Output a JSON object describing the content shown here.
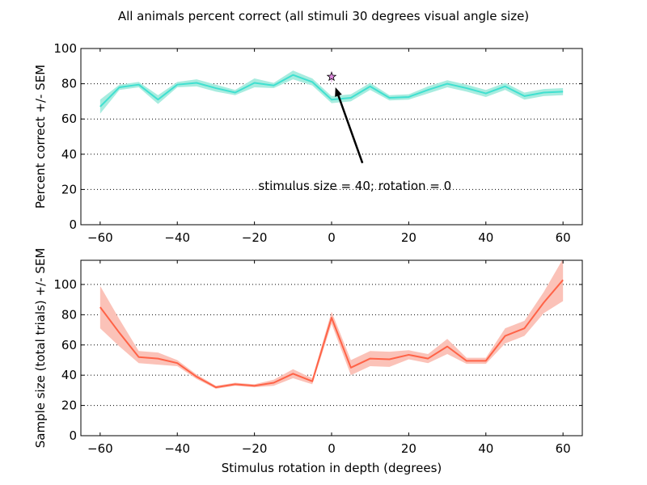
{
  "figure": {
    "title": "All animals percent correct (all stimuli 30 degrees visual angle size)"
  },
  "chart_data": [
    {
      "type": "line",
      "ylabel": "Percent correct +/- SEM",
      "xlabel": "",
      "xlim": [
        -65,
        65
      ],
      "ylim": [
        0,
        100
      ],
      "xticks": [
        -60,
        -40,
        -20,
        0,
        20,
        40,
        60
      ],
      "yticks": [
        0,
        20,
        40,
        60,
        80,
        100
      ],
      "y_grid": "dotted",
      "color": "#40e0d0",
      "band_color": "#a8ecdf",
      "series": [
        {
          "x": [
            -60,
            -55,
            -50,
            -45,
            -40,
            -35,
            -30,
            -25,
            -20,
            -15,
            -10,
            -5,
            0,
            5,
            10,
            15,
            20,
            25,
            30,
            35,
            40,
            45,
            50,
            55,
            60
          ],
          "values": [
            67,
            78,
            79.5,
            71,
            79.5,
            80.5,
            77.5,
            75,
            80.5,
            79,
            85,
            81,
            71,
            72,
            78.5,
            72,
            72.5,
            76.5,
            80,
            77.5,
            74.5,
            78.5,
            73,
            75,
            75.5
          ],
          "sem": [
            4,
            1.5,
            1.5,
            2.5,
            1.5,
            2,
            2,
            1.5,
            2.5,
            1.5,
            2.5,
            2,
            2,
            2,
            2,
            1.5,
            1.5,
            2,
            2,
            2,
            2,
            2,
            2,
            2,
            2
          ]
        }
      ],
      "marker": {
        "symbol": "star",
        "x": 0,
        "y": 84,
        "error": 3,
        "color": "#dd88dd"
      },
      "annotation": {
        "text": "stimulus size = 40; rotation = 0",
        "text_x": -19,
        "text_y": 22,
        "arrow_from": [
          8,
          35
        ],
        "arrow_to": [
          1,
          78
        ]
      }
    },
    {
      "type": "line",
      "ylabel": "Sample size (total trials) +/- SEM",
      "xlabel": "Stimulus rotation in depth (degrees)",
      "xlim": [
        -65,
        65
      ],
      "ylim": [
        0,
        116
      ],
      "xticks": [
        -60,
        -40,
        -20,
        0,
        20,
        40,
        60
      ],
      "yticks": [
        0,
        20,
        40,
        60,
        80,
        100
      ],
      "y_grid": "dotted",
      "color": "#ff6347",
      "band_color": "#fbc2b8",
      "series": [
        {
          "x": [
            -60,
            -55,
            -50,
            -45,
            -40,
            -35,
            -30,
            -25,
            -20,
            -15,
            -10,
            -5,
            0,
            5,
            10,
            15,
            20,
            25,
            30,
            35,
            40,
            45,
            50,
            55,
            60
          ],
          "values": [
            85,
            68,
            52,
            51,
            48,
            39,
            32,
            34,
            33,
            35,
            41,
            36,
            78,
            45,
            51,
            50.5,
            53.5,
            51,
            59,
            49.5,
            49.5,
            66,
            71,
            88,
            103
          ],
          "sem": [
            14,
            9,
            4,
            4,
            2,
            1.5,
            1,
            1,
            1,
            2,
            3,
            2,
            4,
            5,
            5,
            5,
            3,
            3,
            5,
            2,
            2,
            5,
            5,
            7,
            14
          ]
        }
      ]
    }
  ]
}
